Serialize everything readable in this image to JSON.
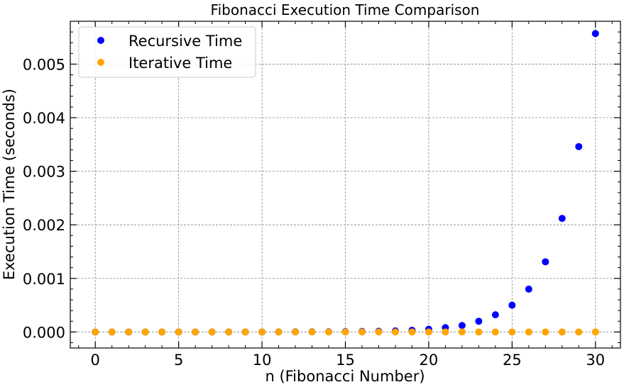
{
  "chart_data": {
    "type": "scatter",
    "title": "Fibonacci Execution Time Comparison",
    "xlabel": "n (Fibonacci Number)",
    "ylabel": "Execution Time (seconds)",
    "xlim": [
      -1.5,
      31.5
    ],
    "ylim": [
      -0.0003,
      0.0058
    ],
    "xticks": [
      0,
      5,
      10,
      15,
      20,
      25,
      30
    ],
    "xtick_labels": [
      "0",
      "5",
      "10",
      "15",
      "20",
      "25",
      "30"
    ],
    "yticks": [
      0.0,
      0.001,
      0.002,
      0.003,
      0.004,
      0.005
    ],
    "ytick_labels": [
      "0.000",
      "0.001",
      "0.002",
      "0.003",
      "0.004",
      "0.005"
    ],
    "grid": true,
    "legend_position": "top-left",
    "x": [
      0,
      1,
      2,
      3,
      4,
      5,
      6,
      7,
      8,
      9,
      10,
      11,
      12,
      13,
      14,
      15,
      16,
      17,
      18,
      19,
      20,
      21,
      22,
      23,
      24,
      25,
      26,
      27,
      28,
      29,
      30
    ],
    "series": [
      {
        "name": "Recursive Time",
        "color": "#0000ff",
        "values": [
          0,
          0,
          0,
          0,
          0,
          0,
          0,
          0,
          0,
          0,
          0,
          1e-06,
          2e-06,
          3e-06,
          4e-06,
          6e-06,
          9e-06,
          1.2e-05,
          1.9e-05,
          3.1e-05,
          5e-05,
          8e-05,
          0.00012,
          0.0002,
          0.00032,
          0.0005,
          0.0008,
          0.00131,
          0.00212,
          0.00346,
          0.00557
        ]
      },
      {
        "name": "Iterative Time",
        "color": "#ffa500",
        "values": [
          0,
          0,
          0,
          0,
          0,
          0,
          0,
          0,
          0,
          0,
          0,
          0,
          0,
          0,
          0,
          0,
          0,
          0,
          0,
          0,
          0,
          0,
          0,
          0,
          0,
          0,
          0,
          0,
          0,
          0,
          0
        ]
      }
    ]
  }
}
